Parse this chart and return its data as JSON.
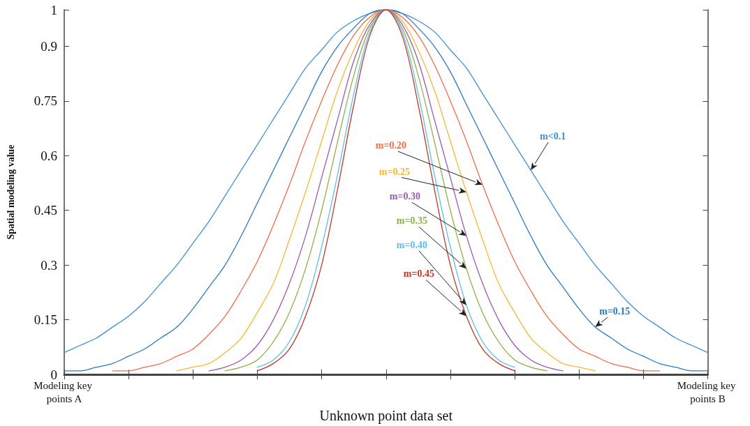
{
  "chart_data": {
    "type": "line",
    "xlabel": "Unknown point data set",
    "ylabel": "Spatial modeling value",
    "marker": "none",
    "categories": [
      "Modeling key points A",
      null,
      null,
      null,
      null,
      null,
      null,
      null,
      null,
      null,
      null,
      null,
      null,
      null,
      null,
      null,
      null,
      null,
      null,
      null,
      null,
      null,
      null,
      null,
      null,
      null,
      null,
      null,
      null,
      null,
      null,
      null,
      null,
      null,
      null,
      null,
      null,
      null,
      null,
      null,
      "Modeling key points B"
    ],
    "ylim": [
      0,
      1
    ],
    "yticks": [
      0,
      0.15,
      0.3,
      0.45,
      0.6,
      0.75,
      0.9,
      1
    ],
    "series": [
      {
        "name": "m<0.1",
        "color": "#3f8fd2",
        "values": [
          0.06,
          0.08,
          0.1,
          0.13,
          0.16,
          0.2,
          0.25,
          0.3,
          0.36,
          0.42,
          0.49,
          0.56,
          0.63,
          0.7,
          0.77,
          0.84,
          0.89,
          0.94,
          0.97,
          0.99,
          1,
          0.99,
          0.97,
          0.94,
          0.89,
          0.84,
          0.77,
          0.7,
          0.63,
          0.56,
          0.49,
          0.42,
          0.36,
          0.3,
          0.25,
          0.2,
          0.16,
          0.13,
          0.1,
          0.08,
          0.06
        ]
      },
      {
        "name": "m=0.15",
        "color": "#2a78c0",
        "values": [
          0.01,
          0.01,
          0.02,
          0.03,
          0.05,
          0.07,
          0.1,
          0.13,
          0.18,
          0.24,
          0.3,
          0.38,
          0.47,
          0.56,
          0.65,
          0.74,
          0.83,
          0.9,
          0.95,
          0.99,
          1,
          0.99,
          0.95,
          0.9,
          0.83,
          0.74,
          0.65,
          0.56,
          0.47,
          0.38,
          0.3,
          0.24,
          0.18,
          0.13,
          0.1,
          0.07,
          0.05,
          0.03,
          0.02,
          0.01,
          0.01
        ]
      },
      {
        "name": "m=0.20",
        "color": "#f26b4a",
        "values": [
          null,
          null,
          null,
          0.01,
          0.01,
          0.02,
          0.03,
          0.05,
          0.07,
          0.11,
          0.16,
          0.23,
          0.31,
          0.41,
          0.52,
          0.64,
          0.75,
          0.85,
          0.93,
          0.98,
          1,
          0.98,
          0.93,
          0.85,
          0.75,
          0.64,
          0.52,
          0.41,
          0.31,
          0.23,
          0.16,
          0.11,
          0.07,
          0.05,
          0.03,
          0.02,
          0.01,
          0.01,
          null,
          null,
          null
        ]
      },
      {
        "name": "m=0.25",
        "color": "#f7b733",
        "values": [
          null,
          null,
          null,
          null,
          null,
          null,
          null,
          0.01,
          0.02,
          0.03,
          0.06,
          0.1,
          0.17,
          0.25,
          0.37,
          0.5,
          0.64,
          0.78,
          0.89,
          0.97,
          1,
          0.97,
          0.89,
          0.78,
          0.64,
          0.5,
          0.37,
          0.25,
          0.17,
          0.1,
          0.06,
          0.03,
          0.02,
          0.01,
          null,
          null,
          null,
          null,
          null,
          null,
          null
        ]
      },
      {
        "name": "m=0.30",
        "color": "#9b59b6",
        "values": [
          null,
          null,
          null,
          null,
          null,
          null,
          null,
          null,
          null,
          0.01,
          0.02,
          0.04,
          0.08,
          0.15,
          0.25,
          0.38,
          0.54,
          0.7,
          0.86,
          0.96,
          1,
          0.96,
          0.86,
          0.7,
          0.54,
          0.38,
          0.25,
          0.15,
          0.08,
          0.04,
          0.02,
          0.01,
          null,
          null,
          null,
          null,
          null,
          null,
          null,
          null,
          null
        ]
      },
      {
        "name": "m=0.35",
        "color": "#8cb04a",
        "values": [
          null,
          null,
          null,
          null,
          null,
          null,
          null,
          null,
          null,
          null,
          0.01,
          0.02,
          0.04,
          0.09,
          0.17,
          0.29,
          0.45,
          0.64,
          0.82,
          0.95,
          1,
          0.95,
          0.82,
          0.64,
          0.45,
          0.29,
          0.17,
          0.09,
          0.04,
          0.02,
          0.01,
          null,
          null,
          null,
          null,
          null,
          null,
          null,
          null,
          null,
          null
        ]
      },
      {
        "name": "m=0.40",
        "color": "#5bc0eb",
        "values": [
          null,
          null,
          null,
          null,
          null,
          null,
          null,
          null,
          null,
          null,
          null,
          null,
          0.02,
          0.04,
          0.09,
          0.19,
          0.35,
          0.55,
          0.77,
          0.94,
          1,
          0.94,
          0.77,
          0.55,
          0.35,
          0.19,
          0.09,
          0.04,
          0.02,
          null,
          null,
          null,
          null,
          null,
          null,
          null,
          null,
          null,
          null,
          null,
          null
        ]
      },
      {
        "name": "m=0.45",
        "color": "#c0392b",
        "values": [
          null,
          null,
          null,
          null,
          null,
          null,
          null,
          null,
          null,
          null,
          null,
          null,
          0.01,
          0.03,
          0.07,
          0.16,
          0.3,
          0.51,
          0.74,
          0.93,
          1,
          0.93,
          0.74,
          0.51,
          0.3,
          0.16,
          0.07,
          0.03,
          0.01,
          null,
          null,
          null,
          null,
          null,
          null,
          null,
          null,
          null,
          null,
          null,
          null
        ]
      }
    ]
  }
}
